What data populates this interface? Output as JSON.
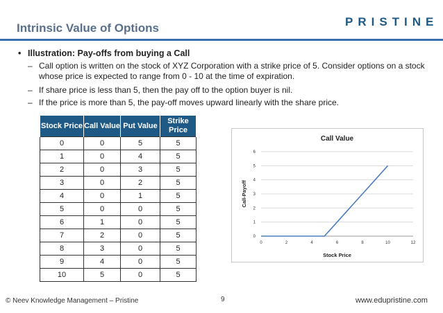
{
  "slide": {
    "title": "Intrinsic Value of Options",
    "logo_text": "PRISTINE",
    "bullet_head": "Illustration: Pay-offs from buying a Call",
    "bullets": [
      "Call option is written on the stock of XYZ Corporation with a strike price of 5. Consider options on a stock whose price is expected to range from 0 - 10 at the time of expiration.",
      "If share price is less than 5, then the pay off to the option buyer is nil.",
      "If the price is more than 5, the pay-off moves upward linearly with the share price."
    ]
  },
  "table": {
    "headers": [
      "Stock Price",
      "Call Value",
      "Put Value",
      "Strike Price"
    ],
    "rows": [
      [
        "0",
        "0",
        "5",
        "5"
      ],
      [
        "1",
        "0",
        "4",
        "5"
      ],
      [
        "2",
        "0",
        "3",
        "5"
      ],
      [
        "3",
        "0",
        "2",
        "5"
      ],
      [
        "4",
        "0",
        "1",
        "5"
      ],
      [
        "5",
        "0",
        "0",
        "5"
      ],
      [
        "6",
        "1",
        "0",
        "5"
      ],
      [
        "7",
        "2",
        "0",
        "5"
      ],
      [
        "8",
        "3",
        "0",
        "5"
      ],
      [
        "9",
        "4",
        "0",
        "5"
      ],
      [
        "10",
        "5",
        "0",
        "5"
      ]
    ]
  },
  "chart_data": {
    "type": "line",
    "title": "Call Value",
    "xlabel": "Stock Price",
    "ylabel": "Call-Payoff",
    "xlim": [
      0,
      12
    ],
    "ylim": [
      0,
      6
    ],
    "xticks": [
      0,
      2,
      4,
      6,
      8,
      10,
      12
    ],
    "yticks": [
      0,
      1,
      2,
      3,
      4,
      5,
      6
    ],
    "grid": "horizontal",
    "series": [
      {
        "x": [
          0,
          1,
          2,
          3,
          4,
          5,
          6,
          7,
          8,
          9,
          10
        ],
        "y": [
          0,
          0,
          0,
          0,
          0,
          0,
          1,
          2,
          3,
          4,
          5
        ],
        "color": "#4a7ebb"
      }
    ]
  },
  "footer": {
    "left": "© Neev Knowledge Management – Pristine",
    "page": "9",
    "right": "www.edupristine.com"
  }
}
